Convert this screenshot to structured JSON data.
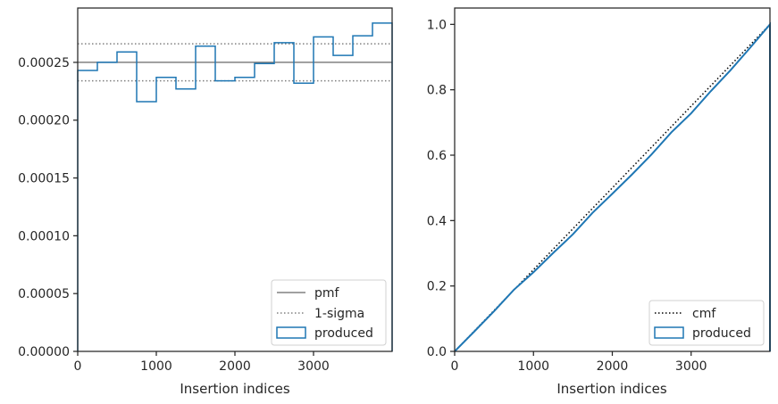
{
  "chart_data": [
    {
      "type": "line",
      "subtype": "step-histogram",
      "title": "",
      "xlabel": "Insertion indices",
      "ylabel": "",
      "xlim": [
        0,
        4000
      ],
      "ylim": [
        0,
        0.000297
      ],
      "xticks": [
        0,
        1000,
        2000,
        3000
      ],
      "xtick_labels": [
        "0",
        "1000",
        "2000",
        "3000"
      ],
      "yticks": [
        0,
        5e-05,
        0.0001,
        0.00015,
        0.0002,
        0.00025
      ],
      "ytick_labels": [
        "0.00000",
        "0.00005",
        "0.00010",
        "0.00015",
        "0.00020",
        "0.00025"
      ],
      "grid": false,
      "legend_position": "lower right",
      "bin_edges": [
        0,
        250,
        500,
        750,
        1000,
        1250,
        1500,
        1750,
        2000,
        2250,
        2500,
        2750,
        3000,
        3250,
        3500,
        3750,
        4000
      ],
      "series": [
        {
          "name": "pmf",
          "style": "solid",
          "color": "#808080",
          "x": [
            0,
            4000
          ],
          "values": [
            0.00025,
            0.00025
          ]
        },
        {
          "name": "1-sigma",
          "style": "dotted",
          "color": "#808080",
          "bands": [
            0.000234,
            0.000266
          ]
        },
        {
          "name": "produced",
          "style": "step",
          "color": "#1f77b4",
          "values": [
            0.000243,
            0.00025,
            0.000259,
            0.000216,
            0.000237,
            0.000227,
            0.000264,
            0.000234,
            0.000237,
            0.000249,
            0.000267,
            0.000232,
            0.000272,
            0.000256,
            0.000273,
            0.000284
          ]
        }
      ]
    },
    {
      "type": "line",
      "title": "",
      "xlabel": "Insertion indices",
      "ylabel": "",
      "xlim": [
        0,
        4000
      ],
      "ylim": [
        0,
        1.05
      ],
      "xticks": [
        0,
        1000,
        2000,
        3000
      ],
      "xtick_labels": [
        "0",
        "1000",
        "2000",
        "3000"
      ],
      "yticks": [
        0,
        0.2,
        0.4,
        0.6,
        0.8,
        1.0
      ],
      "ytick_labels": [
        "0.0",
        "0.2",
        "0.4",
        "0.6",
        "0.8",
        "1.0"
      ],
      "grid": false,
      "legend_position": "lower right",
      "series": [
        {
          "name": "cmf",
          "style": "dotted",
          "color": "#000000",
          "x": [
            0,
            4000
          ],
          "values": [
            0,
            1
          ]
        },
        {
          "name": "produced",
          "style": "solid",
          "color": "#1f77b4",
          "x": [
            0,
            250,
            500,
            750,
            1000,
            1250,
            1500,
            1750,
            2000,
            2250,
            2500,
            2750,
            3000,
            3250,
            3500,
            3750,
            4000,
            4000
          ],
          "values": [
            0,
            0.061,
            0.123,
            0.188,
            0.242,
            0.301,
            0.358,
            0.424,
            0.482,
            0.541,
            0.603,
            0.67,
            0.728,
            0.796,
            0.86,
            0.929,
            1.0,
            0
          ]
        }
      ]
    }
  ]
}
